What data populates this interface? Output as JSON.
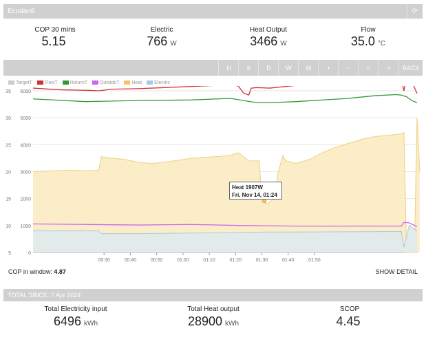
{
  "app_title": "Ecodan6",
  "stats": [
    {
      "label": "COP 30 mins",
      "value": "5.15",
      "unit": ""
    },
    {
      "label": "Electric",
      "value": "766",
      "unit": "W"
    },
    {
      "label": "Heat Output",
      "value": "3466",
      "unit": "W"
    },
    {
      "label": "Flow",
      "value": "35.0",
      "unit": "°C"
    }
  ],
  "nav_buttons": [
    "H",
    "6",
    "D",
    "W",
    "M",
    "+",
    "-",
    "<",
    ">",
    "BACK"
  ],
  "legend": [
    {
      "name": "TargetT",
      "color": "#cccccc"
    },
    {
      "name": "FlowT",
      "color": "#cc3333"
    },
    {
      "name": "ReturnT",
      "color": "#339933"
    },
    {
      "name": "OutsideT",
      "color": "#cc66ee"
    },
    {
      "name": "Heat",
      "color": "#f5c26b"
    },
    {
      "name": "Electric",
      "color": "#a9c8e8"
    }
  ],
  "chart_data": {
    "type": "line",
    "x_labels": [
      "00:30",
      "00:40",
      "00:50",
      "01:00",
      "01:10",
      "01:20",
      "01:30",
      "01:40",
      "01:50"
    ],
    "y_left_ticks": [
      "6000",
      "5000",
      "4000",
      "3000",
      "2000",
      "1000",
      "0"
    ],
    "y_right_ticks": [
      "35",
      "30",
      "25",
      "20",
      "15",
      "10",
      "5"
    ],
    "series": [
      {
        "name": "Heat",
        "color": "#f5c26b",
        "points": [
          [
            0,
            3000
          ],
          [
            5,
            3020
          ],
          [
            10,
            3040
          ],
          [
            15,
            3050
          ],
          [
            20,
            3030
          ],
          [
            25,
            3050
          ],
          [
            26,
            3550
          ],
          [
            30,
            3500
          ],
          [
            35,
            3450
          ],
          [
            40,
            3350
          ],
          [
            45,
            3300
          ],
          [
            50,
            3350
          ],
          [
            55,
            3420
          ],
          [
            60,
            3500
          ],
          [
            65,
            3530
          ],
          [
            70,
            3560
          ],
          [
            75,
            3600
          ],
          [
            78,
            3700
          ],
          [
            80,
            3550
          ],
          [
            82,
            3400
          ],
          [
            86,
            3400
          ],
          [
            87,
            1900
          ],
          [
            89,
            1800
          ],
          [
            91,
            1950
          ],
          [
            92,
            2000
          ],
          [
            93,
            2900
          ],
          [
            95,
            3600
          ],
          [
            96,
            3400
          ],
          [
            100,
            3300
          ],
          [
            105,
            3450
          ],
          [
            110,
            3700
          ],
          [
            115,
            3900
          ],
          [
            120,
            4050
          ],
          [
            125,
            4200
          ],
          [
            130,
            4300
          ],
          [
            135,
            4350
          ],
          [
            140,
            4400
          ],
          [
            141,
            4450
          ],
          [
            142,
            0
          ],
          [
            144,
            0
          ],
          [
            145,
            0
          ],
          [
            146,
            5000
          ],
          [
            147,
            3000
          ]
        ]
      },
      {
        "name": "FlowT",
        "color": "#cc3333",
        "points": [
          [
            0,
            35.5
          ],
          [
            10,
            35.2
          ],
          [
            20,
            35.1
          ],
          [
            25,
            35.0
          ],
          [
            30,
            35.3
          ],
          [
            40,
            35.4
          ],
          [
            50,
            35.6
          ],
          [
            60,
            35.8
          ],
          [
            70,
            36.0
          ],
          [
            75,
            36.1
          ],
          [
            78,
            35.9
          ],
          [
            80,
            34.6
          ],
          [
            82,
            34.2
          ],
          [
            83,
            35.5
          ],
          [
            85,
            35.6
          ],
          [
            90,
            35.5
          ],
          [
            100,
            36.0
          ],
          [
            110,
            36.6
          ],
          [
            120,
            37.0
          ],
          [
            130,
            37.5
          ],
          [
            138,
            37.6
          ],
          [
            140,
            37.2
          ],
          [
            141,
            35.0
          ],
          [
            142,
            37.4
          ],
          [
            144,
            36.7
          ],
          [
            146,
            34.5
          ]
        ]
      },
      {
        "name": "ReturnT",
        "color": "#339933",
        "points": [
          [
            0,
            33.5
          ],
          [
            20,
            33.0
          ],
          [
            40,
            33.2
          ],
          [
            60,
            33.3
          ],
          [
            75,
            33.6
          ],
          [
            80,
            33.2
          ],
          [
            85,
            32.8
          ],
          [
            90,
            32.8
          ],
          [
            100,
            33.0
          ],
          [
            120,
            33.6
          ],
          [
            130,
            34.1
          ],
          [
            138,
            34.3
          ],
          [
            140,
            34.2
          ],
          [
            142,
            33.9
          ],
          [
            144,
            33.2
          ],
          [
            146,
            32.8
          ]
        ]
      },
      {
        "name": "OutsideT",
        "color": "#cc66ee",
        "points": [
          [
            0,
            10.3
          ],
          [
            20,
            10.2
          ],
          [
            40,
            10.1
          ],
          [
            60,
            10.2
          ],
          [
            80,
            10.0
          ],
          [
            100,
            9.9
          ],
          [
            120,
            9.9
          ],
          [
            140,
            9.9
          ],
          [
            141,
            10.6
          ],
          [
            143,
            10.5
          ],
          [
            146,
            9.8
          ]
        ]
      },
      {
        "name": "Electric",
        "color": "#a9c8e8",
        "points": [
          [
            0,
            800
          ],
          [
            25,
            800
          ],
          [
            26,
            700
          ],
          [
            40,
            700
          ],
          [
            60,
            720
          ],
          [
            70,
            730
          ],
          [
            80,
            750
          ],
          [
            90,
            760
          ],
          [
            100,
            760
          ],
          [
            120,
            770
          ],
          [
            140,
            780
          ],
          [
            141,
            200
          ],
          [
            143,
            1000
          ],
          [
            146,
            800
          ]
        ]
      },
      {
        "name": "TargetT",
        "color": "#cccccc",
        "points": [
          [
            0,
            800
          ],
          [
            146,
            800
          ]
        ]
      }
    ],
    "tooltip": {
      "line1": "Heat 1907W",
      "line2": "Fri, Nov 14, 01:24"
    }
  },
  "cop_window_label": "COP in window:",
  "cop_window_value": "4.87",
  "show_detail_label": "SHOW DETAIL",
  "total_title": "TOTAL SINCE: 7 Apr 2024",
  "totals": [
    {
      "label": "Total Electricity input",
      "value": "6496",
      "unit": "kWh"
    },
    {
      "label": "Total Heat output",
      "value": "28900",
      "unit": "kWh"
    },
    {
      "label": "SCOP",
      "value": "4.45",
      "unit": ""
    }
  ]
}
